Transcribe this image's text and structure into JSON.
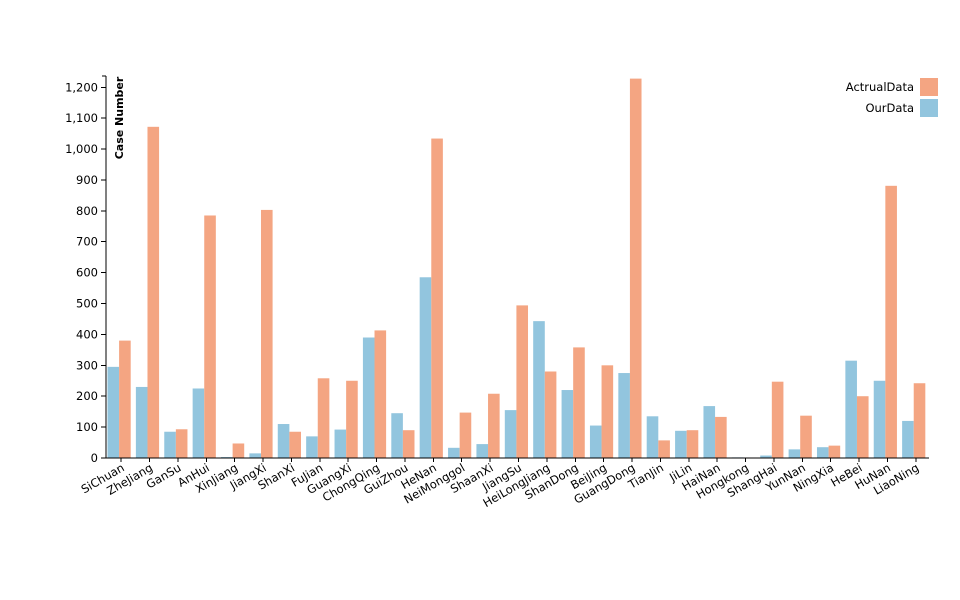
{
  "chart_data": {
    "type": "bar",
    "title": "",
    "xlabel": "",
    "ylabel": "Case Number",
    "ylim": [
      0,
      1230
    ],
    "yticks": [
      0,
      100,
      200,
      300,
      400,
      500,
      600,
      700,
      800,
      900,
      1000,
      1100,
      1200
    ],
    "ytick_labels": [
      "0",
      "100",
      "200",
      "300",
      "400",
      "500",
      "600",
      "700",
      "800",
      "900",
      "1,000",
      "1,100",
      "1,200"
    ],
    "grid": false,
    "legend_position": "top-right",
    "categories": [
      "SiChuan",
      "ZheJiang",
      "GanSu",
      "AnHui",
      "XinJiang",
      "JiangXi",
      "ShanXi",
      "FuJian",
      "GuangXi",
      "ChongQing",
      "GuiZhou",
      "HeNan",
      "NeiMonggol",
      "ShaanXi",
      "JiangSu",
      "HeiLongJiang",
      "ShanDong",
      "BeiJing",
      "GuangDong",
      "TianJin",
      "JiLin",
      "HaiNan",
      "Hongkong",
      "ShangHai",
      "YunNan",
      "NingXia",
      "HeBei",
      "HuNan",
      "LiaoNing"
    ],
    "series": [
      {
        "name": "OurData",
        "color": "#92c5de",
        "values": [
          295,
          230,
          85,
          225,
          3,
          15,
          110,
          70,
          92,
          390,
          145,
          585,
          33,
          45,
          155,
          443,
          220,
          105,
          275,
          135,
          88,
          168,
          2,
          8,
          28,
          35,
          315,
          250,
          120
        ]
      },
      {
        "name": "ActrualData",
        "color": "#f4a582",
        "values": [
          380,
          1072,
          93,
          785,
          47,
          803,
          85,
          258,
          250,
          413,
          90,
          1034,
          147,
          208,
          494,
          280,
          358,
          300,
          1228,
          57,
          90,
          133,
          0,
          247,
          137,
          40,
          200,
          881,
          242
        ]
      }
    ]
  }
}
